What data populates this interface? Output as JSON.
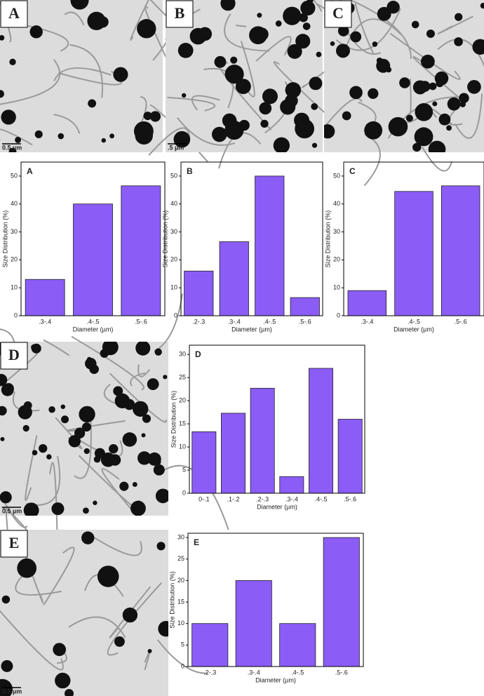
{
  "images": [
    {
      "label": "A",
      "scale": "0.5 µm"
    },
    {
      "label": "B",
      "scale": ".5 µm"
    },
    {
      "label": "C"
    },
    {
      "label": "D",
      "scale": "0.5 µm"
    },
    {
      "label": "E",
      "scale": "0.5 µm"
    }
  ],
  "chart_data": [
    {
      "type": "bar",
      "title": "A",
      "categories": [
        ".3-.4",
        ".4-.5",
        ".5-.6"
      ],
      "values": [
        13,
        40,
        46.5
      ],
      "color": "#8b5cf6",
      "ylim": [
        0,
        55
      ],
      "yticks": [
        0,
        10,
        20,
        30,
        40,
        50
      ],
      "xlabel": "Diameter (µm)",
      "ylabel": "Size Distribution (%)"
    },
    {
      "type": "bar",
      "title": "B",
      "categories": [
        ".2-.3",
        ".3-.4",
        ".4-.5",
        ".5-.6"
      ],
      "values": [
        16,
        26.5,
        50,
        6.5
      ],
      "color": "#8b5cf6",
      "ylim": [
        0,
        55
      ],
      "yticks": [
        0,
        10,
        20,
        30,
        40,
        50
      ],
      "xlabel": "Diameter (µm)",
      "ylabel": "Size Distribution (%)"
    },
    {
      "type": "bar",
      "title": "C",
      "categories": [
        ".3-.4",
        ".4-.5",
        ".5-.6"
      ],
      "values": [
        9,
        44.5,
        46.5
      ],
      "color": "#8b5cf6",
      "ylim": [
        0,
        55
      ],
      "yticks": [
        0,
        10,
        20,
        30,
        40,
        50
      ],
      "xlabel": "Diameter (µm)",
      "ylabel": "Size Distribution (%)"
    },
    {
      "type": "bar",
      "title": "D",
      "categories": [
        "0-.1",
        ".1-.2",
        ".2-.3",
        ".3-.4",
        ".4-.5",
        ".5-.6"
      ],
      "values": [
        13.3,
        17.3,
        22.7,
        3.6,
        27,
        16
      ],
      "color": "#8b5cf6",
      "ylim": [
        0,
        32
      ],
      "yticks": [
        0,
        5,
        10,
        15,
        20,
        25,
        30
      ],
      "xlabel": "Diameter (µm)",
      "ylabel": "Size Distribution (%)"
    },
    {
      "type": "bar",
      "title": "E",
      "categories": [
        ".2-.3",
        ".3-.4",
        ".4-.5",
        ".5-.6"
      ],
      "values": [
        10,
        20,
        10,
        30
      ],
      "color": "#8b5cf6",
      "ylim": [
        0,
        31
      ],
      "yticks": [
        0,
        5,
        10,
        15,
        20,
        25,
        30
      ],
      "xlabel": "Diameter (µm)",
      "ylabel": "Size Distribution (%)"
    }
  ]
}
